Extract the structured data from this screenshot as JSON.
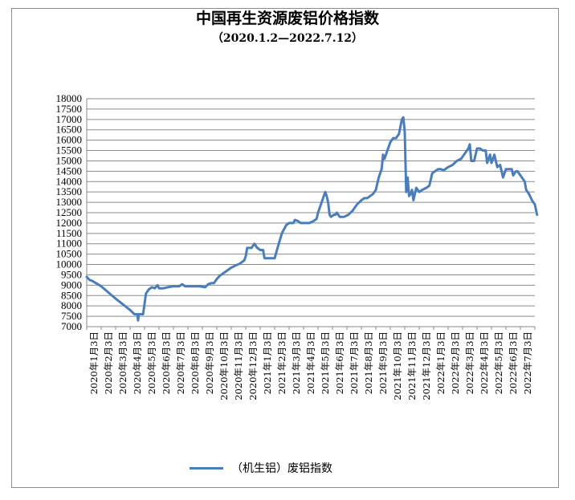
{
  "chart_data": {
    "type": "line",
    "title": "中国再生资源废铝价格指数",
    "subtitle": "（2020.1.2—2022.7.12）",
    "ylim": [
      7000,
      18000
    ],
    "y_ticks": [
      "7000",
      "7500",
      "8000",
      "8500",
      "9000",
      "9500",
      "10000",
      "10500",
      "11000",
      "11500",
      "12000",
      "12500",
      "13000",
      "13500",
      "14000",
      "14500",
      "15000",
      "15500",
      "16000",
      "16500",
      "17000",
      "17500",
      "18000"
    ],
    "x_ticks": [
      "2020年1月3日",
      "2020年2月3日",
      "2020年3月3日",
      "2020年4月3日",
      "2020年5月3日",
      "2020年6月3日",
      "2020年7月3日",
      "2020年8月3日",
      "2020年9月3日",
      "2020年10月3日",
      "2020年11月3日",
      "2020年12月3日",
      "2021年1月3日",
      "2021年2月3日",
      "2021年3月3日",
      "2021年4月3日",
      "2021年5月3日",
      "2021年6月3日",
      "2021年7月3日",
      "2021年8月3日",
      "2021年9月3日",
      "2021年10月3日",
      "2021年11月3日",
      "2021年12月3日",
      "2022年1月3日",
      "2022年2月3日",
      "2022年3月3日",
      "2022年4月3日",
      "2022年5月3日",
      "2022年6月3日",
      "2022年7月3日"
    ],
    "grid": true,
    "legend_position": "bottom",
    "series": [
      {
        "name": "（机生铝）废铝指数",
        "color": "#4a7ebb",
        "points": [
          [
            0.0,
            9400
          ],
          [
            0.2,
            9250
          ],
          [
            0.4,
            9200
          ],
          [
            1.0,
            8950
          ],
          [
            2.0,
            8350
          ],
          [
            3.0,
            7800
          ],
          [
            3.3,
            7600
          ],
          [
            3.5,
            7600
          ],
          [
            3.55,
            7300
          ],
          [
            3.6,
            7600
          ],
          [
            3.9,
            7600
          ],
          [
            4.1,
            8600
          ],
          [
            4.3,
            8800
          ],
          [
            4.5,
            8900
          ],
          [
            4.7,
            8850
          ],
          [
            4.9,
            9000
          ],
          [
            5.0,
            8850
          ],
          [
            5.3,
            8850
          ],
          [
            5.6,
            8900
          ],
          [
            6.0,
            8950
          ],
          [
            6.4,
            8950
          ],
          [
            6.6,
            9050
          ],
          [
            6.8,
            8950
          ],
          [
            7.3,
            8950
          ],
          [
            7.8,
            8950
          ],
          [
            8.2,
            8900
          ],
          [
            8.4,
            9050
          ],
          [
            8.6,
            9100
          ],
          [
            8.8,
            9100
          ],
          [
            9.0,
            9300
          ],
          [
            9.2,
            9450
          ],
          [
            9.5,
            9600
          ],
          [
            9.8,
            9750
          ],
          [
            10.0,
            9850
          ],
          [
            10.3,
            9950
          ],
          [
            10.6,
            10050
          ],
          [
            10.9,
            10200
          ],
          [
            11.0,
            10400
          ],
          [
            11.1,
            10800
          ],
          [
            11.2,
            10800
          ],
          [
            11.4,
            10800
          ],
          [
            11.6,
            11000
          ],
          [
            11.7,
            10900
          ],
          [
            11.8,
            10800
          ],
          [
            12.0,
            10700
          ],
          [
            12.2,
            10700
          ],
          [
            12.3,
            10300
          ],
          [
            12.6,
            10300
          ],
          [
            13.0,
            10300
          ],
          [
            13.2,
            10800
          ],
          [
            13.5,
            11500
          ],
          [
            13.8,
            11900
          ],
          [
            14.0,
            12000
          ],
          [
            14.3,
            12000
          ],
          [
            14.4,
            12150
          ],
          [
            14.6,
            12100
          ],
          [
            14.8,
            12000
          ],
          [
            15.1,
            12000
          ],
          [
            15.4,
            12000
          ],
          [
            15.7,
            12100
          ],
          [
            15.9,
            12200
          ],
          [
            16.0,
            12500
          ],
          [
            16.3,
            13100
          ],
          [
            16.5,
            13500
          ],
          [
            16.6,
            13300
          ],
          [
            16.7,
            13000
          ],
          [
            16.8,
            12400
          ],
          [
            16.9,
            12300
          ],
          [
            17.1,
            12400
          ],
          [
            17.2,
            12400
          ],
          [
            17.3,
            12500
          ],
          [
            17.4,
            12400
          ],
          [
            17.5,
            12300
          ],
          [
            17.6,
            12300
          ],
          [
            17.7,
            12300
          ],
          [
            17.8,
            12300
          ],
          [
            18.1,
            12400
          ],
          [
            18.4,
            12600
          ],
          [
            18.7,
            12900
          ],
          [
            19.0,
            13100
          ],
          [
            19.2,
            13200
          ],
          [
            19.4,
            13200
          ],
          [
            19.6,
            13300
          ],
          [
            19.8,
            13400
          ],
          [
            20.0,
            13600
          ],
          [
            20.2,
            14200
          ],
          [
            20.4,
            14600
          ],
          [
            20.5,
            15300
          ],
          [
            20.6,
            15100
          ],
          [
            20.8,
            15500
          ],
          [
            21.0,
            15900
          ],
          [
            21.2,
            16100
          ],
          [
            21.4,
            16100
          ],
          [
            21.6,
            16300
          ],
          [
            21.8,
            17000
          ],
          [
            21.9,
            17100
          ],
          [
            22.0,
            16400
          ],
          [
            22.1,
            13500
          ],
          [
            22.2,
            14200
          ],
          [
            22.3,
            13300
          ],
          [
            22.4,
            13400
          ],
          [
            22.5,
            13600
          ],
          [
            22.6,
            13100
          ],
          [
            22.8,
            13700
          ],
          [
            22.9,
            13600
          ],
          [
            23.0,
            13500
          ],
          [
            23.2,
            13600
          ],
          [
            23.5,
            13700
          ],
          [
            23.7,
            13800
          ],
          [
            23.9,
            14400
          ],
          [
            24.1,
            14500
          ],
          [
            24.3,
            14600
          ],
          [
            24.5,
            14600
          ],
          [
            24.7,
            14550
          ],
          [
            25.0,
            14700
          ],
          [
            25.3,
            14800
          ],
          [
            25.6,
            15000
          ],
          [
            25.9,
            15100
          ],
          [
            26.1,
            15300
          ],
          [
            26.3,
            15500
          ],
          [
            26.4,
            15600
          ],
          [
            26.5,
            15800
          ],
          [
            26.6,
            15000
          ],
          [
            26.8,
            15000
          ],
          [
            26.9,
            15300
          ],
          [
            27.0,
            15600
          ],
          [
            27.2,
            15600
          ],
          [
            27.4,
            15500
          ],
          [
            27.6,
            15500
          ],
          [
            27.7,
            14900
          ],
          [
            27.9,
            15300
          ],
          [
            28.0,
            14900
          ],
          [
            28.2,
            15300
          ],
          [
            28.3,
            15000
          ],
          [
            28.4,
            14700
          ],
          [
            28.6,
            14800
          ],
          [
            28.8,
            14200
          ],
          [
            29.0,
            14600
          ],
          [
            29.2,
            14600
          ],
          [
            29.4,
            14600
          ],
          [
            29.5,
            14300
          ],
          [
            29.6,
            14400
          ],
          [
            29.7,
            14500
          ],
          [
            29.8,
            14500
          ],
          [
            30.0,
            14300
          ],
          [
            30.2,
            14100
          ],
          [
            30.3,
            14000
          ],
          [
            30.4,
            13600
          ],
          [
            30.6,
            13400
          ],
          [
            30.8,
            13100
          ],
          [
            31.0,
            12900
          ],
          [
            31.15,
            12400
          ]
        ]
      }
    ]
  }
}
